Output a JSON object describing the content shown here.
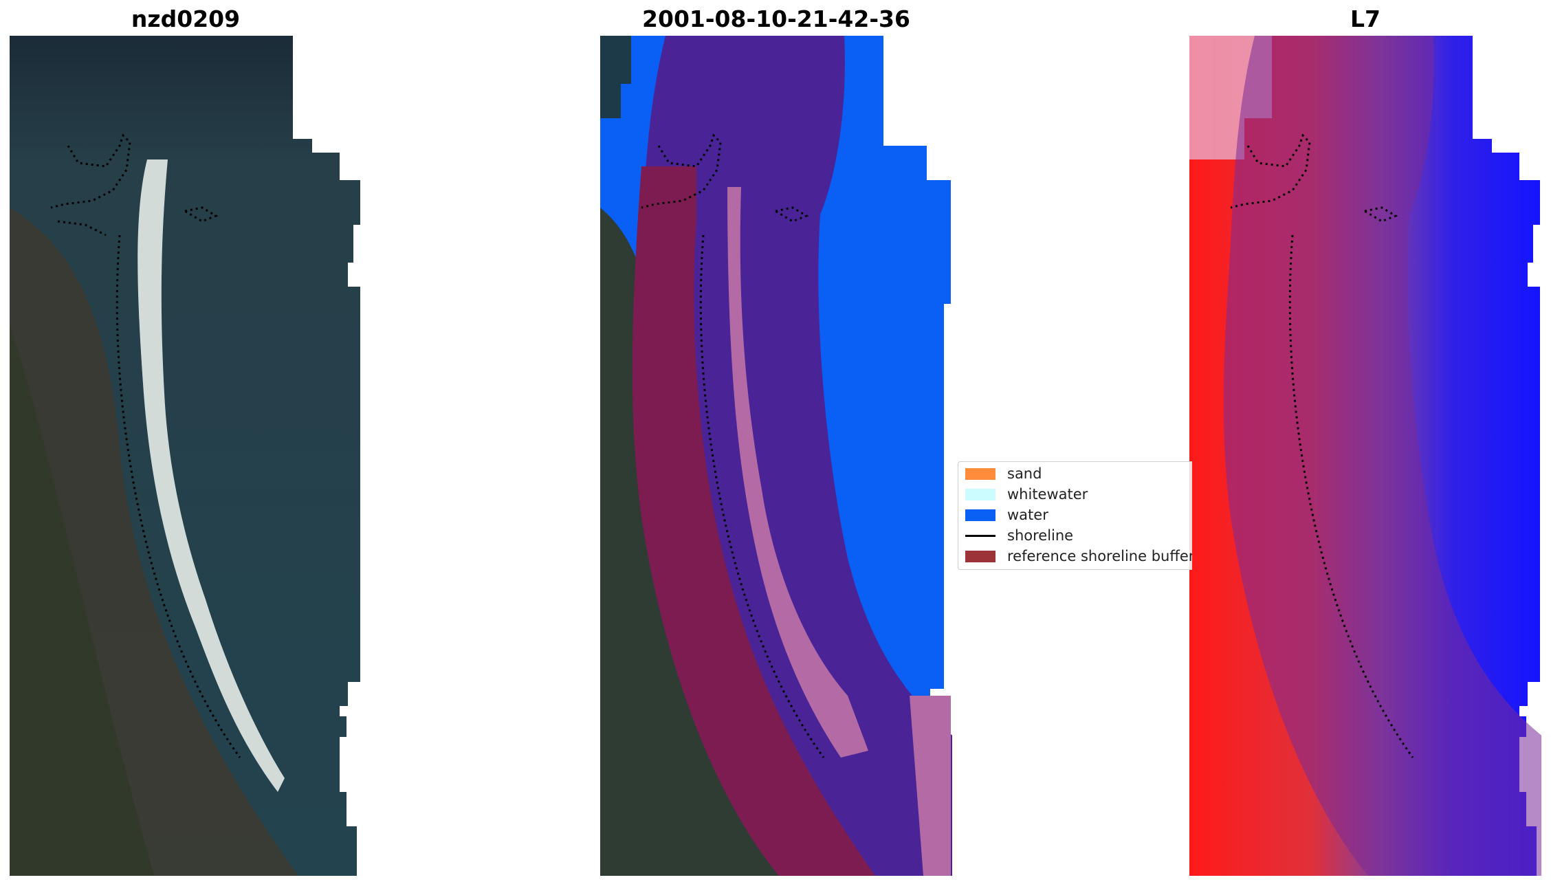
{
  "panels": {
    "panel_1_title": "nzd0209",
    "panel_2_title": "2001-08-10-21-42-36",
    "panel_3_title": "L7"
  },
  "legend": {
    "items": [
      {
        "label": "sand",
        "color": "#ff8c3a"
      },
      {
        "label": "whitewater",
        "color": "#ccfcff"
      },
      {
        "label": "water",
        "color": "#0a5ff5"
      },
      {
        "label": "shoreline",
        "color": "#000000"
      },
      {
        "label": "reference shoreline buffer",
        "color": "#9b3338"
      }
    ]
  },
  "colors": {
    "rgb_background": "#23404e",
    "classification_water": "#0a5ff5",
    "classification_overlay_purple": "#4a2496",
    "index_red": "#ff1a1a",
    "index_blue": "#1010ff"
  }
}
